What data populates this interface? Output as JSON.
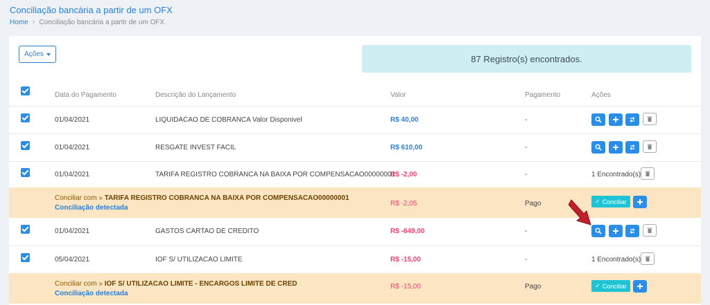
{
  "page": {
    "title": "Conciliação bancária a partir de um OFX",
    "breadcrumb_home": "Home",
    "breadcrumb_current": "Conciliação bancária a partir de um OFX"
  },
  "toolbar": {
    "acoes_label": "Ações"
  },
  "summary": {
    "count_text": "87 Registro(s) encontrados."
  },
  "table": {
    "headers": {
      "date": "Data do Pagamento",
      "desc": "Descrição do Lançamento",
      "value": "Valor",
      "payment": "Pagamento",
      "actions": "Ações"
    },
    "rows": [
      {
        "date": "01/04/2021",
        "desc": "LIQUIDACAO DE COBRANCA Valor Disponivel",
        "value": "R$ 40,00",
        "payment": "-"
      },
      {
        "date": "01/04/2021",
        "desc": "RESGATE INVEST FACIL",
        "value": "R$ 610,00",
        "payment": "-"
      },
      {
        "date": "01/04/2021",
        "desc": "TARIFA REGISTRO COBRANCA NA BAIXA POR COMPENSACAO00000001",
        "value": "R$ -2,00",
        "payment": "-",
        "found": "1 Encontrado(s)"
      },
      {
        "date": "01/04/2021",
        "desc": "GASTOS CARTAO DE CREDITO",
        "value": "R$ -649,00",
        "payment": "-"
      },
      {
        "date": "05/04/2021",
        "desc": "IOF S/ UTILIZACAO LIMITE",
        "value": "R$ -15,00",
        "payment": "-",
        "found": "1 Encontrado(s)"
      }
    ],
    "matches": [
      {
        "prefix": "Conciliar com »",
        "target": "TARIFA REGISTRO COBRANCA NA BAIXA POR COMPENSACAO00000001",
        "detected": "Conciliação detectada",
        "value": "R$ -2,05",
        "payment": "Pago",
        "button": "Conciliar"
      },
      {
        "prefix": "Conciliar com »",
        "target": "IOF S/ UTILIZACAO LIMITE - ENCARGOS LIMITE DE CRED",
        "detected": "Conciliação detectada",
        "value": "R$ -15,00",
        "payment": "Pago",
        "button": "Conciliar"
      }
    ]
  },
  "colors": {
    "primary": "#2a8ee8",
    "link": "#2a7fd4",
    "negative": "#e8406a",
    "match_bg": "#fce5c3",
    "info_bg": "#cdeef3",
    "conciliar": "#1ec3d6",
    "arrow": "#c0202a"
  }
}
